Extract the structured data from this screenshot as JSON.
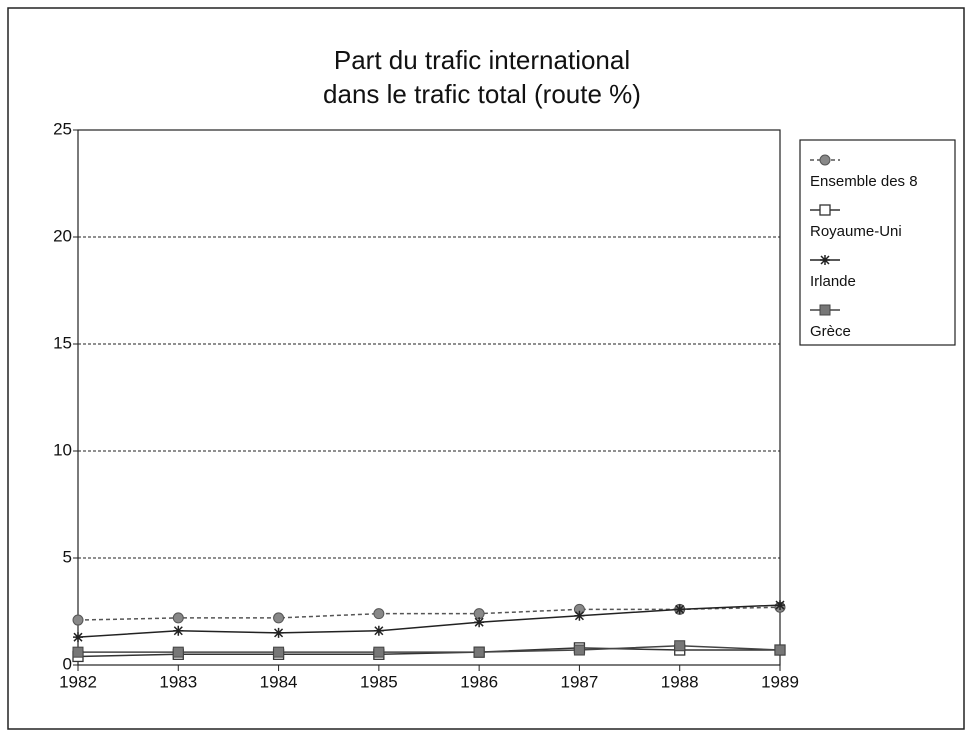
{
  "chart_data": {
    "type": "line",
    "title": [
      "Part du trafic international",
      "dans le trafic total (route %)"
    ],
    "categories": [
      "1982",
      "1983",
      "1984",
      "1985",
      "1986",
      "1987",
      "1988",
      "1989"
    ],
    "series": [
      {
        "name": "Ensemble des 8",
        "color": "#555555",
        "marker": "circle",
        "dashed": true,
        "values": [
          2.1,
          2.2,
          2.2,
          2.4,
          2.4,
          2.6,
          2.6,
          2.7
        ]
      },
      {
        "name": "Royaume-Uni",
        "color": "#333333",
        "marker": "open-square",
        "dashed": false,
        "values": [
          0.4,
          0.5,
          0.5,
          0.5,
          0.6,
          0.8,
          0.7,
          0.7
        ]
      },
      {
        "name": "Irlande",
        "color": "#222222",
        "marker": "asterisk",
        "dashed": false,
        "values": [
          1.3,
          1.6,
          1.5,
          1.6,
          2.0,
          2.3,
          2.6,
          2.8
        ]
      },
      {
        "name": "Grèce",
        "color": "#444444",
        "marker": "filled-square",
        "dashed": false,
        "values": [
          0.6,
          0.6,
          0.6,
          0.6,
          0.6,
          0.7,
          0.9,
          0.7
        ]
      }
    ],
    "ylim": [
      0,
      25
    ],
    "yticks": [
      0,
      5,
      10,
      15,
      20,
      25
    ],
    "grid": true,
    "legend": "right"
  }
}
